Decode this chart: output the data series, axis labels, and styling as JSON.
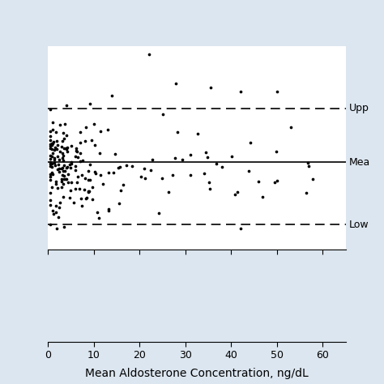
{
  "xlabel": "Mean Aldosterone Concentration, ng/dL",
  "mean_line": 0.0,
  "upper_loa": 6.5,
  "lower_loa": -7.5,
  "xlim": [
    0,
    65
  ],
  "ylim_plot": [
    -10.5,
    14.0
  ],
  "label_upper": "Upp",
  "label_mean": "Mea",
  "label_lower": "Low",
  "dot_color": "#000000",
  "dot_size": 7,
  "line_color": "#000000",
  "background_color": "#dce6f0",
  "plot_bg": "#ffffff",
  "x_ticks": [
    0,
    10,
    20,
    30,
    40,
    50,
    60
  ],
  "label_fontsize": 10,
  "tick_fontsize": 9,
  "annot_fontsize": 9
}
